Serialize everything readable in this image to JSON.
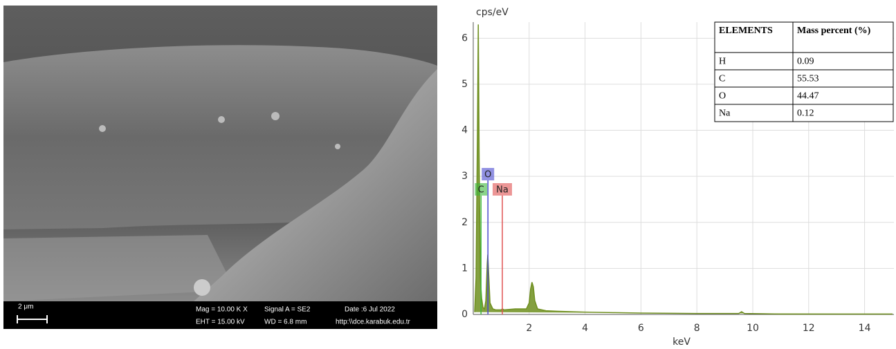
{
  "sem_image": {
    "scale_bar": "2 μm",
    "mag": "Mag =  10.00 K X",
    "signal": "Signal A = SE2",
    "date": "Date :6 Jul 2022",
    "eht": "EHT = 15.00 kV",
    "wd": "WD = 6.8 mm",
    "url": "http:\\\\dce.karabuk.edu.tr"
  },
  "chart_data": {
    "type": "area",
    "y_label": "cps/eV",
    "x_label": "keV",
    "color": "#6f8f1f",
    "x": [
      0.05,
      0.1,
      0.15,
      0.18,
      0.21,
      0.25,
      0.3,
      0.35,
      0.4,
      0.45,
      0.5,
      0.52,
      0.55,
      0.6,
      0.7,
      0.8,
      1.0,
      1.04,
      1.1,
      1.5,
      1.9,
      2.0,
      2.05,
      2.1,
      2.15,
      2.2,
      2.3,
      2.6,
      3,
      4,
      5,
      6,
      8,
      9.5,
      9.6,
      9.7,
      11,
      15
    ],
    "values": [
      0.05,
      0.8,
      4.0,
      6.3,
      3.5,
      0.8,
      0.35,
      0.15,
      0.12,
      0.3,
      1.1,
      1.3,
      0.9,
      0.25,
      0.12,
      0.1,
      0.1,
      0.12,
      0.1,
      0.12,
      0.12,
      0.25,
      0.55,
      0.7,
      0.6,
      0.3,
      0.12,
      0.08,
      0.07,
      0.05,
      0.04,
      0.03,
      0.02,
      0.02,
      0.06,
      0.02,
      0.01,
      0.01
    ],
    "xlim": [
      0,
      15.05
    ],
    "ylim": [
      0,
      6.35
    ],
    "xticks": [
      2,
      4,
      6,
      8,
      10,
      12,
      14
    ],
    "yticks": [
      0,
      1,
      2,
      3,
      4,
      5,
      6
    ],
    "grid": true,
    "element_markers": [
      {
        "label": "C",
        "x": 0.277,
        "color": "#3cb83c"
      },
      {
        "label": "O",
        "x": 0.525,
        "color": "#4a4ad0"
      },
      {
        "label": "Na",
        "x": 1.04,
        "color": "#e05050"
      }
    ]
  },
  "table": {
    "header": [
      "ELEMENTS",
      "Mass percent (%)"
    ],
    "rows": [
      [
        "H",
        "0.09"
      ],
      [
        "C",
        "55.53"
      ],
      [
        "O",
        "44.47"
      ],
      [
        "Na",
        "0.12"
      ]
    ]
  }
}
